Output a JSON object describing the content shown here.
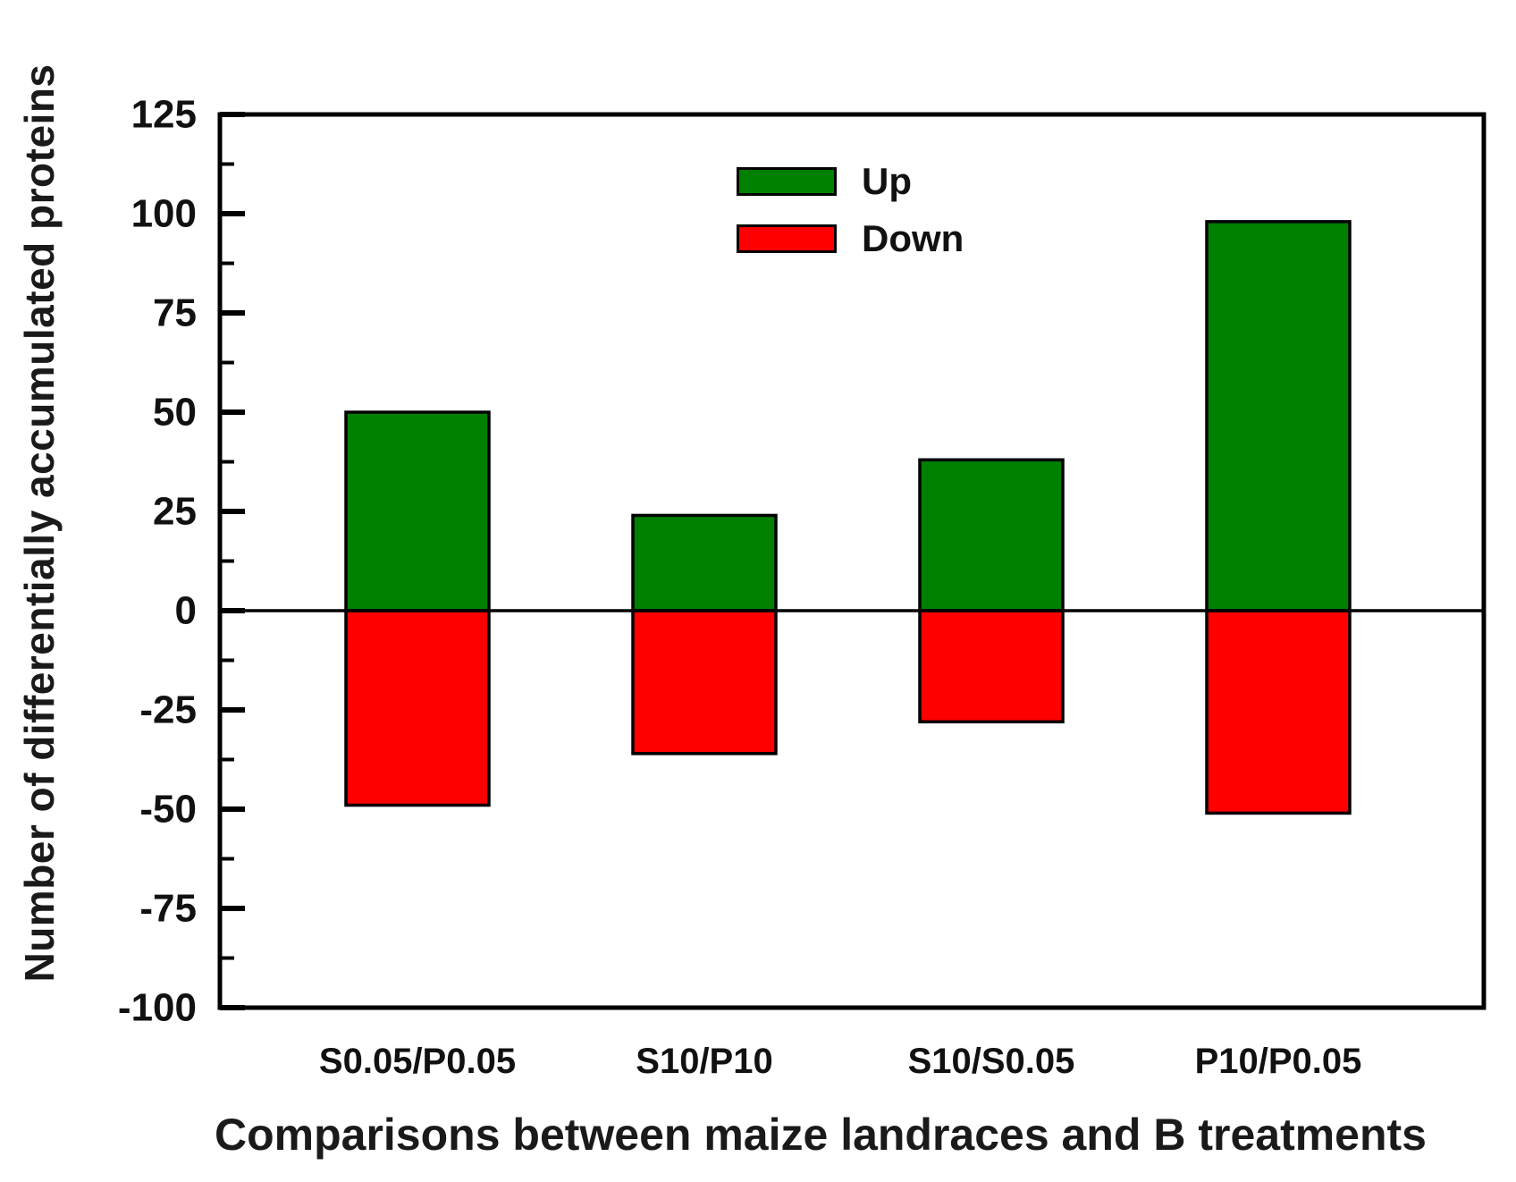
{
  "figure": {
    "background": "#ffffff",
    "frame_color": "#000000"
  },
  "chart_data": {
    "type": "bar",
    "title": "",
    "xlabel": "Comparisons between maize landraces and B treatments",
    "ylabel": "Number of differentially accumulated proteins",
    "categories": [
      "S0.05/P0.05",
      "S10/P10",
      "S10/S0.05",
      "P10/P0.05"
    ],
    "series": [
      {
        "name": "Up",
        "color": "#008000",
        "values": [
          50,
          24,
          38,
          98
        ]
      },
      {
        "name": "Down",
        "color": "#ff0000",
        "values": [
          -49,
          -36,
          -28,
          -51
        ]
      }
    ],
    "ylim": [
      -100,
      125
    ],
    "yticks": [
      125,
      100,
      75,
      50,
      25,
      0,
      -25,
      -50,
      -75,
      -100
    ],
    "ytick_minor_step": 12.5,
    "grid": false,
    "zero_line": true,
    "bar_edge_color": "#000000",
    "axis_color": "#000000",
    "legend_position": "upper center-right inside"
  }
}
